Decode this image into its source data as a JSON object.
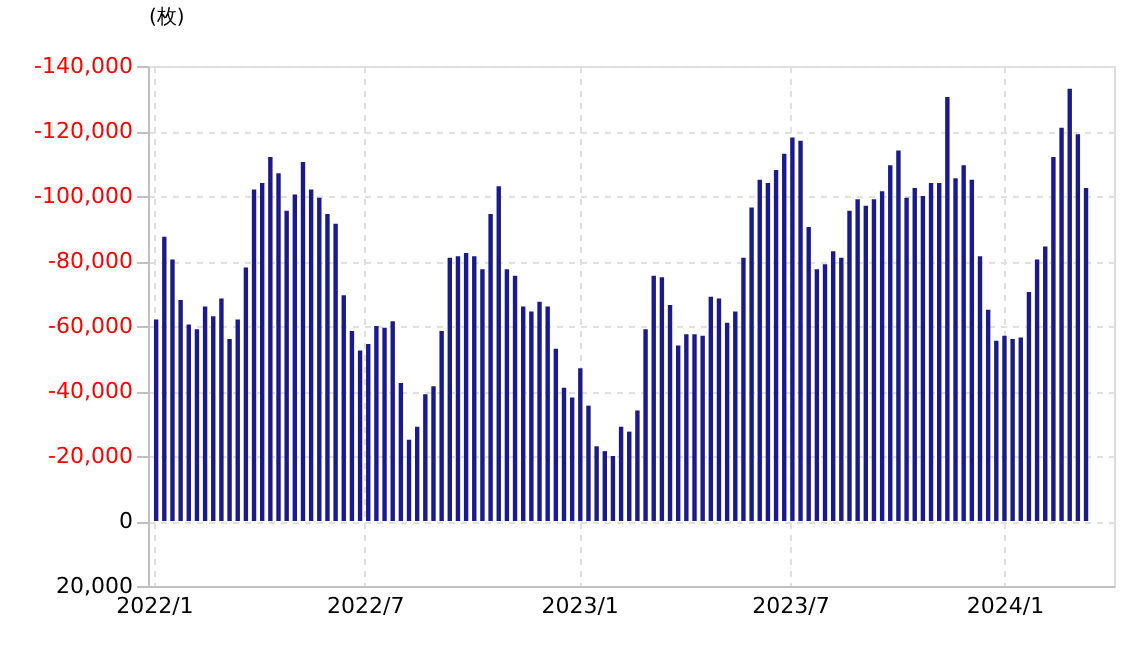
{
  "chart_data": {
    "type": "bar",
    "ylabel": "(枚)",
    "x": [
      "2022-01-03",
      "2022-01-10",
      "2022-01-17",
      "2022-01-24",
      "2022-01-31",
      "2022-02-07",
      "2022-02-14",
      "2022-02-21",
      "2022-02-28",
      "2022-03-07",
      "2022-03-14",
      "2022-03-21",
      "2022-03-28",
      "2022-04-04",
      "2022-04-11",
      "2022-04-18",
      "2022-04-25",
      "2022-05-02",
      "2022-05-09",
      "2022-05-16",
      "2022-05-23",
      "2022-05-30",
      "2022-06-06",
      "2022-06-13",
      "2022-06-20",
      "2022-06-27",
      "2022-07-04",
      "2022-07-11",
      "2022-07-18",
      "2022-07-25",
      "2022-08-01",
      "2022-08-08",
      "2022-08-15",
      "2022-08-22",
      "2022-08-29",
      "2022-09-05",
      "2022-09-12",
      "2022-09-19",
      "2022-09-26",
      "2022-10-03",
      "2022-10-10",
      "2022-10-17",
      "2022-10-24",
      "2022-10-31",
      "2022-11-07",
      "2022-11-14",
      "2022-11-21",
      "2022-11-28",
      "2022-12-05",
      "2022-12-12",
      "2022-12-19",
      "2022-12-26",
      "2023-01-02",
      "2023-01-09",
      "2023-01-16",
      "2023-01-23",
      "2023-01-30",
      "2023-02-06",
      "2023-02-13",
      "2023-02-20",
      "2023-02-27",
      "2023-03-06",
      "2023-03-13",
      "2023-03-20",
      "2023-03-27",
      "2023-04-03",
      "2023-04-10",
      "2023-04-17",
      "2023-04-24",
      "2023-05-01",
      "2023-05-08",
      "2023-05-15",
      "2023-05-22",
      "2023-05-29",
      "2023-06-05",
      "2023-06-12",
      "2023-06-19",
      "2023-06-26",
      "2023-07-03",
      "2023-07-10",
      "2023-07-17",
      "2023-07-24",
      "2023-07-31",
      "2023-08-07",
      "2023-08-14",
      "2023-08-21",
      "2023-08-28",
      "2023-09-04",
      "2023-09-11",
      "2023-09-18",
      "2023-09-25",
      "2023-10-02",
      "2023-10-09",
      "2023-10-16",
      "2023-10-23",
      "2023-10-30",
      "2023-11-06",
      "2023-11-13",
      "2023-11-20",
      "2023-11-27",
      "2023-12-04",
      "2023-12-11",
      "2023-12-18",
      "2023-12-25",
      "2024-01-01",
      "2024-01-08",
      "2024-01-15",
      "2024-01-22",
      "2024-01-29",
      "2024-02-05",
      "2024-02-12",
      "2024-02-19",
      "2024-02-26",
      "2024-03-04",
      "2024-03-11"
    ],
    "series": [
      {
        "color": "#1a1a8c",
        "values": [
          -62000,
          -87500,
          -80500,
          -68000,
          -60500,
          -59000,
          -66000,
          -63000,
          -68500,
          -56000,
          -62000,
          -78000,
          -102000,
          -104000,
          -112000,
          -107000,
          -95500,
          -100500,
          -110500,
          -102000,
          -99500,
          -94500,
          -91500,
          -69500,
          -58500,
          -52500,
          -54500,
          -60000,
          -59500,
          -61500,
          -42500,
          -25000,
          -29000,
          -39000,
          -41500,
          -58500,
          -81000,
          -81500,
          -82500,
          -81500,
          -77500,
          -94500,
          -103000,
          -77500,
          -75500,
          -66000,
          -64500,
          -67500,
          -66000,
          -53000,
          -41000,
          -38000,
          -47000,
          -35500,
          -23000,
          -21500,
          -20000,
          -29000,
          -27500,
          -34000,
          -59000,
          -75500,
          -75000,
          -66500,
          -54000,
          -57500,
          -57500,
          -57000,
          -69000,
          -68500,
          -61000,
          -64500,
          -81000,
          -96500,
          -105000,
          -104000,
          -108000,
          -113000,
          -118000,
          -117000,
          -90500,
          -77500,
          -79000,
          -83000,
          -81000,
          -95500,
          -99000,
          -97000,
          -99000,
          -101500,
          -109500,
          -114000,
          -99500,
          -102500,
          -100000,
          -104000,
          -104000,
          -130500,
          -105500,
          -109500,
          -105000,
          -81500,
          -65000,
          -55500,
          -57000,
          -56000,
          -56500,
          -70500,
          -80500,
          -84500,
          -112000,
          -121000,
          -133000,
          -119000,
          -102500
        ]
      }
    ],
    "xlim": [
      "2021-12-27",
      "2024-04-04"
    ],
    "xticks": [
      {
        "value": "2022-01-01",
        "label": "2022/1"
      },
      {
        "value": "2022-07-01",
        "label": "2022/7"
      },
      {
        "value": "2023-01-01",
        "label": "2023/1"
      },
      {
        "value": "2023-07-01",
        "label": "2023/7"
      },
      {
        "value": "2024-01-01",
        "label": "2024/1"
      }
    ],
    "ylim": [
      20000,
      -140000
    ],
    "yticks": [
      {
        "value": -140000,
        "label": "-140,000"
      },
      {
        "value": -120000,
        "label": "-120,000"
      },
      {
        "value": -100000,
        "label": "-100,000"
      },
      {
        "value": -80000,
        "label": "-80,000"
      },
      {
        "value": -60000,
        "label": "-60,000"
      },
      {
        "value": -40000,
        "label": "-40,000"
      },
      {
        "value": -20000,
        "label": "-20,000"
      },
      0,
      {
        "value": 20000,
        "label": "20,000"
      }
    ],
    "grid": true
  }
}
